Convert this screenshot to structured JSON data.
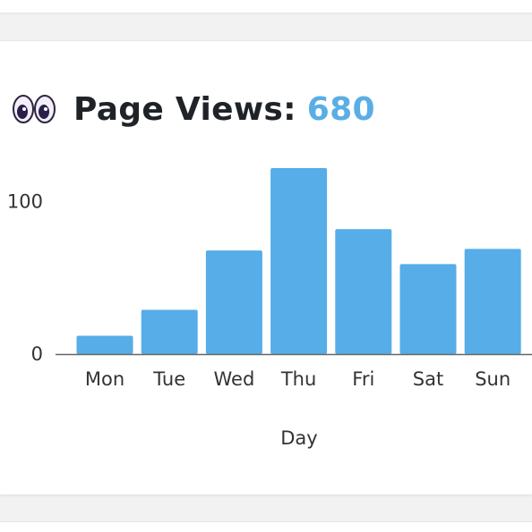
{
  "header": {
    "icon": "eyes-emoji-icon",
    "label": "Page Views:",
    "value": "680"
  },
  "colors": {
    "bar": "#56ade8",
    "accent_value": "#5aaee5",
    "title": "#1f2328",
    "axis": "#333333"
  },
  "chart_data": {
    "type": "bar",
    "title": "",
    "xlabel": "Day",
    "ylabel": "",
    "categories": [
      "Mon",
      "Tue",
      "Wed",
      "Thu",
      "Fri",
      "Sat",
      "Sun"
    ],
    "values": [
      12,
      29,
      68,
      122,
      82,
      59,
      69
    ],
    "ylim": [
      0,
      122
    ],
    "yticks": [
      0,
      100
    ],
    "grid": false,
    "legend": "none"
  }
}
